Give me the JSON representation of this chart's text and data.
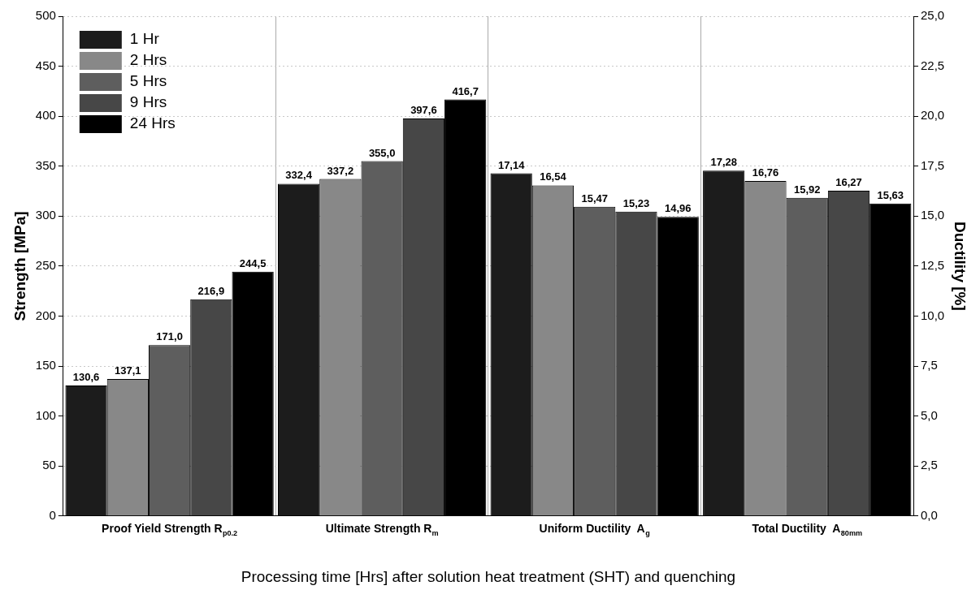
{
  "chart_data": {
    "type": "bar",
    "categories": [
      "Proof Yield Strength R$_{p0.2}$",
      "Ultimate Strength R$_{m}$",
      "Uniform Ductility  A$_{g}$",
      "Total Ductility  A$_{80mm}$"
    ],
    "xlabel": "Processing time [Hrs] after solution heat treatment (SHT) and quenching",
    "ylabel": "Strength [MPa]",
    "y2label": "Ductility [%]",
    "ylim": [
      0,
      500
    ],
    "yticks": [
      0,
      50,
      100,
      150,
      200,
      250,
      300,
      350,
      400,
      450,
      500
    ],
    "y2lim": [
      0,
      25
    ],
    "y2ticks": [
      {
        "value": 0,
        "label": "0,0"
      },
      {
        "value": 2.5,
        "label": "2,5"
      },
      {
        "value": 5,
        "label": "5,0"
      },
      {
        "value": 7.5,
        "label": "7,5"
      },
      {
        "value": 10,
        "label": "10,0"
      },
      {
        "value": 12.5,
        "label": "12,5"
      },
      {
        "value": 15,
        "label": "15,0"
      },
      {
        "value": 17.5,
        "label": "17,5"
      },
      {
        "value": 20,
        "label": "20,0"
      },
      {
        "value": 22.5,
        "label": "22,5"
      },
      {
        "value": 25,
        "label": "25,0"
      }
    ],
    "grid": true,
    "legend": "top left",
    "series": [
      {
        "name": "1 Hr",
        "color": "#1c1c1c",
        "values": [
          130.6,
          332.4,
          null,
          null
        ],
        "value_labels": [
          "130,6",
          "332,4",
          null,
          null
        ]
      },
      {
        "name": "2 Hrs",
        "color": "#888888",
        "values": [
          137.1,
          337.2,
          null,
          null
        ],
        "value_labels": [
          "137,1",
          "337,2",
          null,
          null
        ]
      },
      {
        "name": "5 Hrs",
        "color": "#5e5e5e",
        "values": [
          171.0,
          355.0,
          null,
          null
        ],
        "value_labels": [
          "171,0",
          "355,0",
          null,
          null
        ]
      },
      {
        "name": "9 Hrs",
        "color": "#474747",
        "values": [
          216.9,
          397.6,
          null,
          null
        ],
        "value_labels": [
          "216,9",
          "397,6",
          null,
          null
        ]
      },
      {
        "name": "24 Hrs",
        "color": "#000000",
        "values": [
          244.5,
          416.7,
          null,
          null
        ],
        "value_labels": [
          "244,5",
          "416,7",
          null,
          null
        ]
      },
      {
        "color": "#1c1c1c",
        "axis": "y2",
        "values": [
          null,
          null,
          17.14,
          17.28
        ],
        "value_labels": [
          null,
          null,
          "17,14",
          "17,28"
        ]
      },
      {
        "color": "#888888",
        "axis": "y2",
        "values": [
          null,
          null,
          16.54,
          16.76
        ],
        "value_labels": [
          null,
          null,
          "16,54",
          "16,76"
        ]
      },
      {
        "color": "#5e5e5e",
        "axis": "y2",
        "values": [
          null,
          null,
          15.47,
          15.92
        ],
        "value_labels": [
          null,
          null,
          "15,47",
          "15,92"
        ]
      },
      {
        "color": "#474747",
        "axis": "y2",
        "values": [
          null,
          null,
          15.23,
          16.27
        ],
        "value_labels": [
          null,
          null,
          "15,23",
          "16,27"
        ]
      },
      {
        "color": "#000000",
        "axis": "y2",
        "values": [
          null,
          null,
          14.96,
          15.63
        ],
        "value_labels": [
          null,
          null,
          "14,96",
          "15,63"
        ]
      }
    ]
  }
}
